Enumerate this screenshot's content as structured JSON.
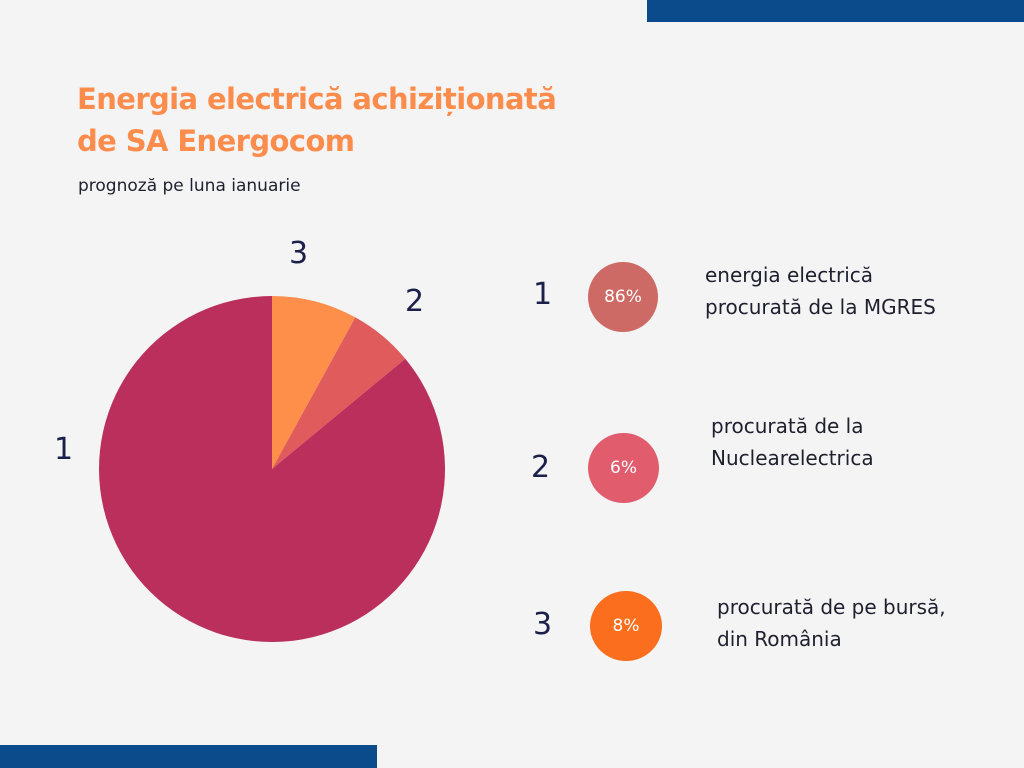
{
  "title_lines": [
    "Energia electrică achiziționată",
    "de SA Energocom"
  ],
  "subtitle": "prognoză pe luna ianuarie",
  "colors": {
    "bar": "#0b4a8b",
    "title": "#fb8c4c",
    "slice_1": "#ba2f5c",
    "slice_2": "#e05b5b",
    "slice_3": "#fe8f4a",
    "badge_1": "#cd6a65",
    "badge_2": "#e15d6d",
    "badge_3": "#fa6e1e"
  },
  "chart_data": {
    "type": "pie",
    "title": "Energia electrică achiziționată de SA Energocom",
    "subtitle": "prognoză pe luna ianuarie",
    "slice_labels": [
      "1",
      "2",
      "3"
    ],
    "values": [
      86,
      6,
      8
    ],
    "unit": "%",
    "order": "slice 3 starts at top going clockwise, then 2, then 1"
  },
  "legend": [
    {
      "num": "1",
      "pct": "86%",
      "lines": [
        "energia electrică",
        "procurată de la MGRES"
      ]
    },
    {
      "num": "2",
      "pct": "6%",
      "lines": [
        "procurată de la",
        "Nuclearelectrica"
      ]
    },
    {
      "num": "3",
      "pct": "8%",
      "lines": [
        "procurată de pe bursă,",
        "din România"
      ]
    }
  ]
}
